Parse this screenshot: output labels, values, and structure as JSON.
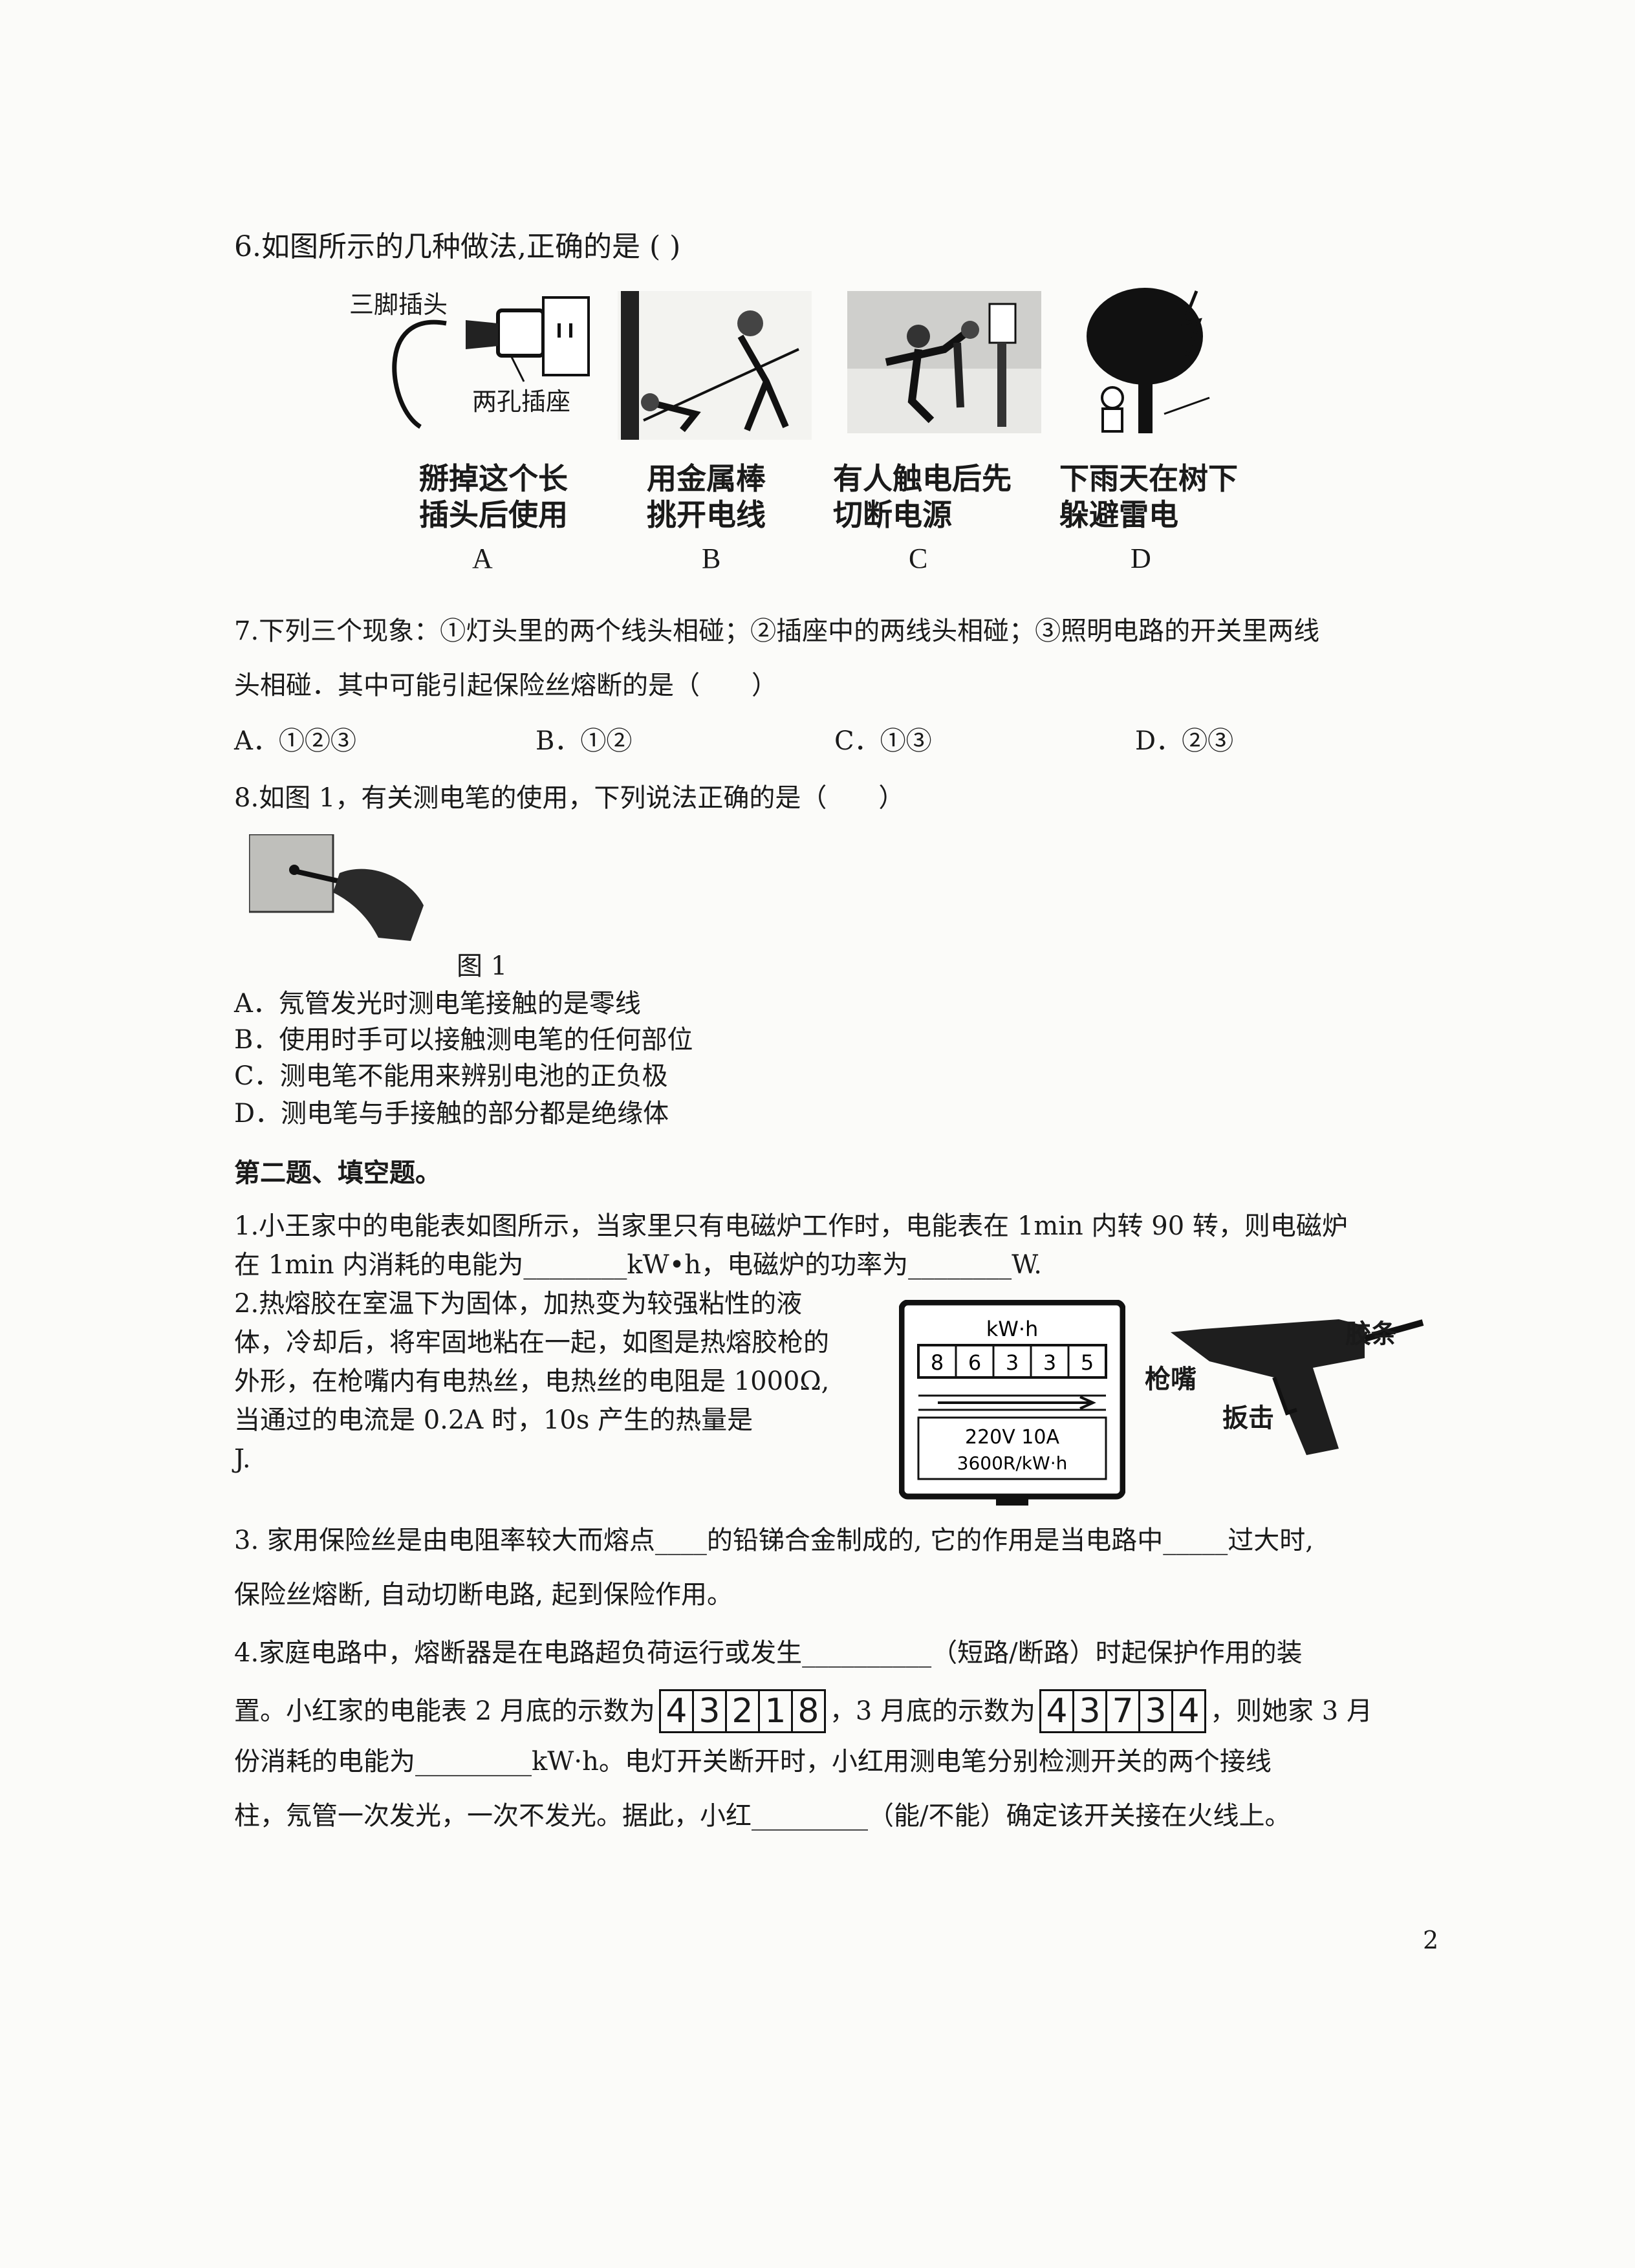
{
  "q6": {
    "question": "6.如图所示的几种做法,正确的是 ( )",
    "fig_a": {
      "label_plug": "三脚插头",
      "label_socket": "两孔插座",
      "caption_1": "掰掉这个长",
      "caption_2": "插头后使用",
      "letter": "A"
    },
    "fig_b": {
      "caption_1": "用金属棒",
      "caption_2": "挑开电线",
      "letter": "B"
    },
    "fig_c": {
      "caption_1": "有人触电后先",
      "caption_2": "切断电源",
      "letter": "C"
    },
    "fig_d": {
      "caption_1": "下雨天在树下",
      "caption_2": "躲避雷电",
      "letter": "D"
    }
  },
  "q7": {
    "line1": "7.下列三个现象：①灯头里的两个线头相碰；②插座中的两线头相碰；③照明电路的开关里两线",
    "line2": "头相碰．其中可能引起保险丝熔断的是（　　）",
    "options": [
      "A．①②③",
      "B．①②",
      "C．①③",
      "D．②③"
    ]
  },
  "q8": {
    "question": "8.如图 1，有关测电笔的使用，下列说法正确的是（　　）",
    "figure_label": "图 1",
    "options": [
      "A．氖管发光时测电笔接触的是零线",
      "B．使用时手可以接触测电笔的任何部位",
      "C．测电笔不能用来辨别电池的正负极",
      "D．测电笔与手接触的部分都是绝缘体"
    ]
  },
  "section2": {
    "title": "第二题、填空题。"
  },
  "f1": {
    "line1": "1.小王家中的电能表如图所示，当家里只有电磁炉工作时，电能表在 1min 内转 90 转，则电磁炉",
    "line2": "在 1min 内消耗的电能为________kW•h，电磁炉的功率为________W."
  },
  "f2": {
    "line1": "2.热熔胶在室温下为固体，加热变为较强粘性的液",
    "line2": "体，冷却后，将牢固地粘在一起，如图是热熔胶枪的",
    "line3": "外形，在枪嘴内有电热丝，电热丝的电阻是 1000Ω,",
    "line4": "当通过的电流是 0.2A 时，10s 产生的热量是",
    "line5": "J."
  },
  "meter": {
    "unit": "kW·h",
    "digits": [
      "8",
      "6",
      "3",
      "3",
      "5"
    ],
    "rating": "220V  10A",
    "constant": "3600R/kW·h"
  },
  "glue_gun": {
    "label_stick": "胶条",
    "label_nozzle": "枪嘴",
    "label_trigger": "扳击"
  },
  "f3": {
    "line1": "3. 家用保险丝是由电阻率较大而熔点____的铅锑合金制成的, 它的作用是当电路中_____过大时,",
    "line2": "保险丝熔断, 自动切断电路, 起到保险作用。"
  },
  "f4": {
    "line1": "4.家庭电路中，熔断器是在电路超负荷运行或发生__________（短路/断路）时起保护作用的装",
    "line2_a": "置。小红家的电能表 2 月底的示数为",
    "reading_feb": [
      "4",
      "3",
      "2",
      "1",
      "8"
    ],
    "line2_b": "，3 月底的示数为",
    "reading_mar": [
      "4",
      "3",
      "7",
      "3",
      "4"
    ],
    "line2_c": "，则她家 3 月",
    "line3": "份消耗的电能为_________kW·h。电灯开关断开时，小红用测电笔分别检测开关的两个接线",
    "line4": "柱，氖管一次发光，一次不发光。据此，小红_________（能/不能）确定该开关接在火线上。"
  },
  "page_number": "2"
}
